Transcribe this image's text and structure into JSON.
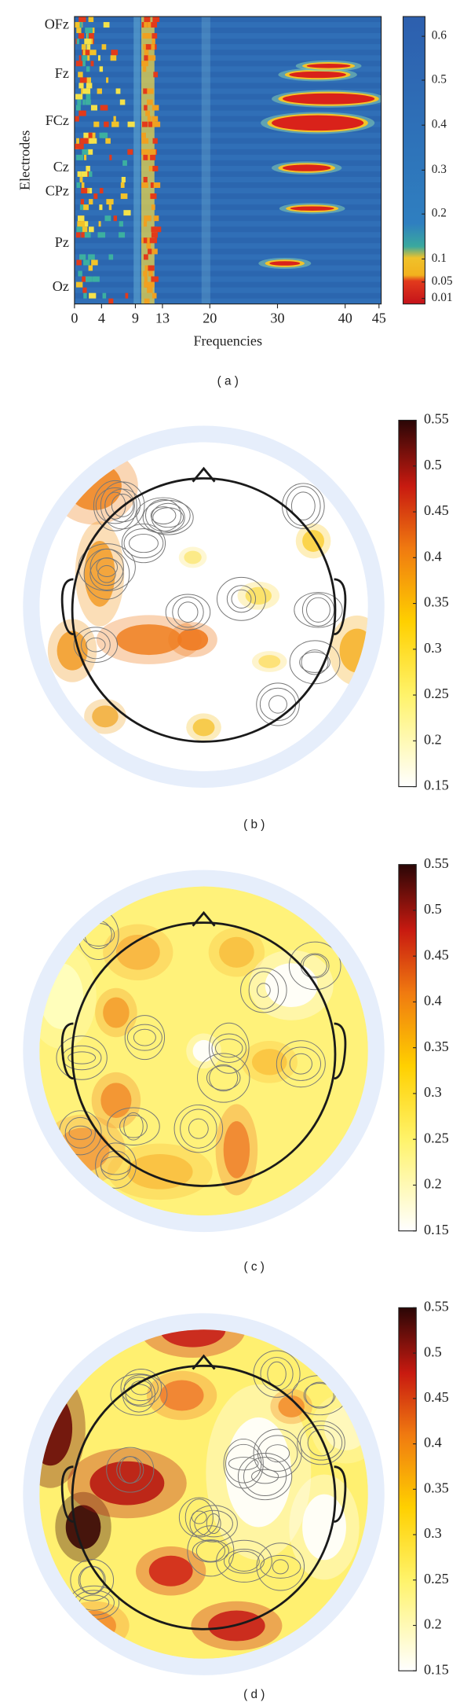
{
  "panel_a": {
    "ylabel": "Electrodes",
    "xlabel": "Frequencies",
    "electrodes": [
      "OFz",
      "Fz",
      "FCz",
      "Cz",
      "CPz",
      "Pz",
      "Oz"
    ],
    "xlim": [
      0,
      45
    ],
    "xticks": [
      0,
      4,
      9,
      13,
      20,
      30,
      40,
      45
    ],
    "colorbar_ticks": [
      0.6,
      0.5,
      0.4,
      0.3,
      0.2,
      0.1,
      0.05,
      0.01
    ],
    "caption": "( a )"
  },
  "topomaps": [
    {
      "caption": "( b )",
      "colorbar_lim": [
        0.15,
        0.55
      ],
      "colorbar_ticks": [
        0.55,
        0.5,
        0.45,
        0.4,
        0.35,
        0.3,
        0.25,
        0.2,
        0.15
      ]
    },
    {
      "caption": "( c )",
      "colorbar_lim": [
        0.15,
        0.55
      ],
      "colorbar_ticks": [
        0.55,
        0.5,
        0.45,
        0.4,
        0.35,
        0.3,
        0.25,
        0.2,
        0.15
      ]
    },
    {
      "caption": "( d )",
      "colorbar_lim": [
        0.15,
        0.55
      ],
      "colorbar_ticks": [
        0.55,
        0.5,
        0.45,
        0.4,
        0.35,
        0.3,
        0.25,
        0.2,
        0.15
      ]
    }
  ]
}
